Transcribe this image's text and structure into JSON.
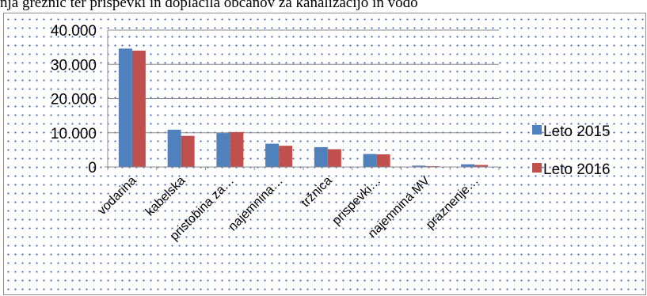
{
  "caption": "nja greznic ter prispevki in doplačila občanov za kanalizacijo in vodo",
  "chart_data": {
    "type": "bar",
    "title": "",
    "xlabel": "",
    "ylabel": "",
    "ylim": [
      0,
      40000
    ],
    "yticks": [
      0,
      10000,
      20000,
      30000,
      40000
    ],
    "ytick_labels": [
      "0",
      "10.000",
      "20.000",
      "30.000",
      "40.000"
    ],
    "categories": [
      "vodarina",
      "kabelska",
      "pristobina za…",
      "najemnina…",
      "tržnica",
      "prispevki…",
      "najemnina MV",
      "praznenje…"
    ],
    "series": [
      {
        "name": "Leto 2015",
        "color": "#4f81bd",
        "values": [
          34600,
          10900,
          9900,
          6800,
          5800,
          3800,
          400,
          800
        ]
      },
      {
        "name": "Leto 2016",
        "color": "#c0504d",
        "values": [
          34000,
          9100,
          10200,
          6200,
          5200,
          3700,
          250,
          600
        ]
      }
    ],
    "grid": true,
    "legend": "right"
  }
}
